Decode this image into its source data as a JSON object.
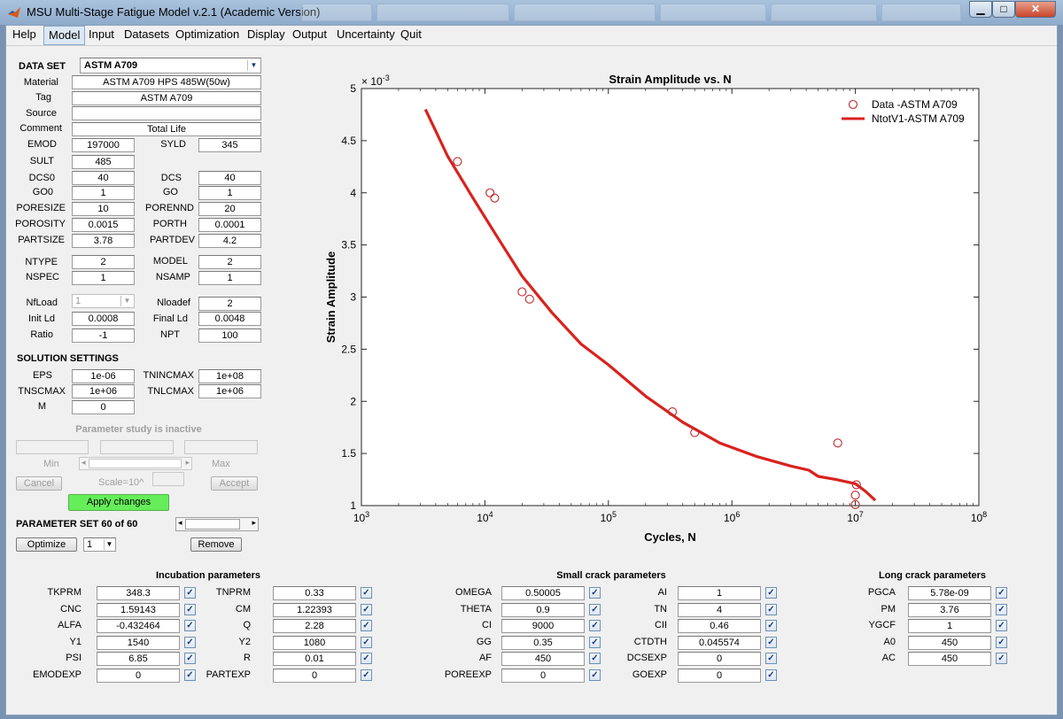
{
  "window": {
    "title": "MSU Multi-Stage Fatigue Model v.2.1 (Academic Version)",
    "minimize_icon": "minimize-icon",
    "maximize_icon": "maximize-icon",
    "close_icon": "close-icon"
  },
  "menu": [
    "Help",
    "Model",
    "Input",
    "Datasets",
    "Optimization",
    "Display",
    "Output",
    "Uncertainty",
    "Quit"
  ],
  "dataset": {
    "header": "DATA SET",
    "selected": "ASTM A709",
    "material_label": "Material",
    "material": "ASTM A709 HPS 485W(50w)",
    "tag_label": "Tag",
    "tag": "ASTM A709",
    "source_label": "Source",
    "source": "",
    "comment_label": "Comment",
    "comment": "Total Life",
    "emod_label": "EMOD",
    "emod": "197000",
    "syld_label": "SYLD",
    "syld": "345",
    "sult_label": "SULT",
    "sult": "485",
    "dcs0_label": "DCS0",
    "dcs0": "40",
    "dcs_label": "DCS",
    "dcs": "40",
    "go0_label": "GO0",
    "go0": "1",
    "go_label": "GO",
    "go": "1",
    "poresize_label": "PORESIZE",
    "poresize": "10",
    "porennd_label": "PORENND",
    "porennd": "20",
    "porosity_label": "POROSITY",
    "porosity": "0.0015",
    "porth_label": "PORTH",
    "porth": "0.0001",
    "partsize_label": "PARTSIZE",
    "partsize": "3.78",
    "partdev_label": "PARTDEV",
    "partdev": "4.2",
    "ntype_label": "NTYPE",
    "ntype": "2",
    "model_label": "MODEL",
    "model": "2",
    "nspec_label": "NSPEC",
    "nspec": "1",
    "nsamp_label": "NSAMP",
    "nsamp": "1",
    "nfload_label": "NfLoad",
    "nfload": "1",
    "nloadef_label": "Nloadef",
    "nloadef": "2",
    "initld_label": "Init Ld",
    "initld": "0.0008",
    "finalld_label": "Final Ld",
    "finalld": "0.0048",
    "ratio_label": "Ratio",
    "ratio": "-1",
    "npt_label": "NPT",
    "npt": "100"
  },
  "solution": {
    "header": "SOLUTION SETTINGS",
    "eps_label": "EPS",
    "eps": "1e-06",
    "tnincmax_label": "TNINCMAX",
    "tnincmax": "1e+08",
    "tnscmax_label": "TNSCMAX",
    "tnscmax": "1e+06",
    "tnlcmax_label": "TNLCMAX",
    "tnlcmax": "1e+06",
    "m_label": "M",
    "m": "0"
  },
  "param_study": {
    "status": "Parameter study is inactive",
    "min_label": "Min",
    "max_label": "Max",
    "cancel": "Cancel",
    "scale": "Scale=10^",
    "accept": "Accept",
    "apply": "Apply changes"
  },
  "param_set": {
    "label": "PARAMETER SET 60 of 60",
    "optimize": "Optimize",
    "selector": "1",
    "remove": "Remove"
  },
  "chart_data": {
    "type": "scatter",
    "title": "Strain Amplitude vs. N",
    "xlabel": "Cycles, N",
    "ylabel": "Strain Amplitude",
    "x_scale": "log",
    "xlim": [
      1000,
      100000000
    ],
    "ylim": [
      1,
      5
    ],
    "y_multiplier": "× 10^-3",
    "y_multiplier_base": "× 10",
    "y_multiplier_exp": "-3",
    "x_ticks": [
      "10^3",
      "10^4",
      "10^5",
      "10^6",
      "10^7",
      "10^8"
    ],
    "x_tick_values": [
      1000,
      10000,
      100000,
      1000000,
      10000000,
      100000000
    ],
    "y_ticks": [
      1,
      1.5,
      2,
      2.5,
      3,
      3.5,
      4,
      4.5,
      5
    ],
    "y_tick_labels": [
      "1",
      "1.5",
      "2",
      "2.5",
      "3",
      "3.5",
      "4",
      "4.5",
      "5"
    ],
    "legend_position": "top-right",
    "grid": false,
    "series": [
      {
        "name": "Data -ASTM A709",
        "marker": "circle",
        "color": "#c0282a",
        "points": [
          [
            6000,
            4.3
          ],
          [
            11000,
            4.0
          ],
          [
            12000,
            3.95
          ],
          [
            20000,
            3.05
          ],
          [
            23000,
            2.98
          ],
          [
            330000,
            1.9
          ],
          [
            500000,
            1.7
          ],
          [
            7200000,
            1.6
          ],
          [
            10200000,
            1.2
          ],
          [
            10000000,
            1.1
          ],
          [
            10000000,
            1.01
          ]
        ]
      },
      {
        "name": "NtotV1-ASTM A709",
        "marker": "line",
        "color": "#d9221e",
        "points": [
          [
            3300,
            4.8
          ],
          [
            5000,
            4.35
          ],
          [
            8000,
            3.95
          ],
          [
            13000,
            3.55
          ],
          [
            20000,
            3.2
          ],
          [
            35000,
            2.85
          ],
          [
            60000,
            2.55
          ],
          [
            100000,
            2.35
          ],
          [
            200000,
            2.05
          ],
          [
            400000,
            1.8
          ],
          [
            800000,
            1.6
          ],
          [
            1600000,
            1.47
          ],
          [
            3000000,
            1.38
          ],
          [
            4200000,
            1.34
          ],
          [
            5000000,
            1.28
          ],
          [
            7000000,
            1.25
          ],
          [
            10000000,
            1.21
          ],
          [
            12000000,
            1.14
          ],
          [
            14500000,
            1.05
          ]
        ]
      }
    ]
  },
  "incubation": {
    "title": "Incubation parameters",
    "left": [
      {
        "label": "TKPRM",
        "value": "348.3"
      },
      {
        "label": "CNC",
        "value": "1.59143"
      },
      {
        "label": "ALFA",
        "value": "-0.432464"
      },
      {
        "label": "Y1",
        "value": "1540"
      },
      {
        "label": "PSI",
        "value": "6.85"
      },
      {
        "label": "EMODEXP",
        "value": "0"
      }
    ],
    "right": [
      {
        "label": "TNPRM",
        "value": "0.33"
      },
      {
        "label": "CM",
        "value": "1.22393"
      },
      {
        "label": "Q",
        "value": "2.28"
      },
      {
        "label": "Y2",
        "value": "1080"
      },
      {
        "label": "R",
        "value": "0.01"
      },
      {
        "label": "PARTEXP",
        "value": "0"
      }
    ]
  },
  "small_crack": {
    "title": "Small crack parameters",
    "left": [
      {
        "label": "OMEGA",
        "value": "0.50005"
      },
      {
        "label": "THETA",
        "value": "0.9"
      },
      {
        "label": "CI",
        "value": "9000"
      },
      {
        "label": "GG",
        "value": "0.35"
      },
      {
        "label": "AF",
        "value": "450"
      },
      {
        "label": "POREEXP",
        "value": "0"
      }
    ],
    "right": [
      {
        "label": "AI",
        "value": "1"
      },
      {
        "label": "TN",
        "value": "4"
      },
      {
        "label": "CII",
        "value": "0.46"
      },
      {
        "label": "CTDTH",
        "value": "0.045574"
      },
      {
        "label": "DCSEXP",
        "value": "0"
      },
      {
        "label": "GOEXP",
        "value": "0"
      }
    ]
  },
  "long_crack": {
    "title": "Long crack parameters",
    "rows": [
      {
        "label": "PGCA",
        "value": "5.78e-09"
      },
      {
        "label": "PM",
        "value": "3.76"
      },
      {
        "label": "YGCF",
        "value": "1"
      },
      {
        "label": "A0",
        "value": "450"
      },
      {
        "label": "AC",
        "value": "450"
      }
    ]
  },
  "checkmark": "✓",
  "colors": {
    "accent_green": "#66ee5a",
    "plot_red": "#c0282a"
  }
}
